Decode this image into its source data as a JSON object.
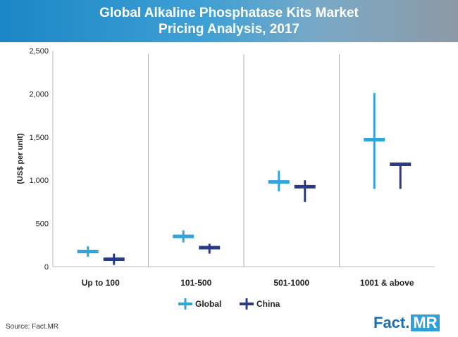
{
  "title_lines": [
    "Global Alkaline Phosphatase Kits Market",
    "Pricing Analysis, 2017"
  ],
  "source": "Source: Fact.MR",
  "brand": {
    "part1": "Fact.",
    "part2": "MR"
  },
  "colors": {
    "Global": "#33a3dc",
    "China": "#2b3a84",
    "header": "#1b86c6"
  },
  "chart_data": {
    "type": "high-low-mid",
    "title": "Global Alkaline Phosphatase Kits Market Pricing Analysis, 2017",
    "ylabel": "(US$ per unit)",
    "xlabel": "",
    "ylim": [
      0,
      2500
    ],
    "yticks": [
      0,
      500,
      1000,
      1500,
      2000,
      2500
    ],
    "ytick_labels": [
      "0",
      "500",
      "1,000",
      "1,500",
      "2,000",
      "2,500"
    ],
    "categories": [
      "Up to 100",
      "101-500",
      "501-1000",
      "1001 & above"
    ],
    "legend_position": "bottom-center",
    "series": [
      {
        "name": "Global",
        "low": [
          115,
          280,
          870,
          900
        ],
        "high": [
          235,
          420,
          1110,
          2010
        ],
        "mid": [
          175,
          350,
          980,
          1470
        ]
      },
      {
        "name": "China",
        "low": [
          20,
          150,
          750,
          900
        ],
        "high": [
          150,
          265,
          1000,
          1200
        ],
        "mid": [
          85,
          220,
          925,
          1185
        ]
      }
    ]
  }
}
